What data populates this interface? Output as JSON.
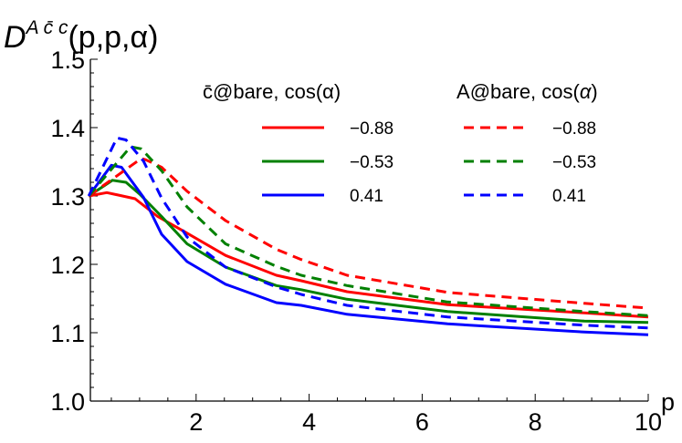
{
  "chart_data": {
    "type": "line",
    "ylabel": "D^{A c̄ c}(p,p,α)",
    "ylabel_parts": {
      "base": "D",
      "sup": "A c̄ c",
      "args": "(p,p,α)"
    },
    "xlabel": "p",
    "xlim": [
      0,
      10
    ],
    "ylim": [
      1.0,
      1.5
    ],
    "xticks": [
      2,
      4,
      6,
      8,
      10
    ],
    "yticks": [
      1.0,
      1.1,
      1.2,
      1.3,
      1.4,
      1.5
    ],
    "ytick_labels": [
      "1.0",
      "1.1",
      "1.2",
      "1.3",
      "1.4",
      "1.5"
    ],
    "grid": false,
    "legend_placement": "top-right",
    "legend_groups": [
      {
        "title": "c̄@bare, cos(α)",
        "title_parts": {
          "sym": "c",
          "rest": "@bare, cos(",
          "alpha": "α",
          "close": ")"
        },
        "style": "solid"
      },
      {
        "title": "A@bare, cos(α)",
        "title_parts": {
          "sym": "A",
          "rest": "@bare, cos(",
          "alpha": "α",
          "close": ")"
        },
        "style": "dashed"
      }
    ],
    "series": [
      {
        "name": "−0.88",
        "group": 0,
        "color": "#ff0000",
        "style": "solid",
        "x": [
          0.1,
          0.42,
          0.92,
          1.32,
          1.81,
          2.52,
          3.42,
          3.86,
          4.67,
          6.45,
          8.87,
          10
        ],
        "y": [
          1.3,
          1.305,
          1.296,
          1.27,
          1.247,
          1.213,
          1.184,
          1.176,
          1.16,
          1.141,
          1.129,
          1.123
        ]
      },
      {
        "name": "−0.53",
        "group": 0,
        "color": "#008000",
        "style": "solid",
        "x": [
          0.1,
          0.52,
          0.76,
          1.0,
          1.39,
          1.84,
          2.52,
          3.42,
          3.86,
          4.67,
          6.45,
          8.87,
          10
        ],
        "y": [
          1.3,
          1.323,
          1.32,
          1.303,
          1.27,
          1.23,
          1.196,
          1.169,
          1.163,
          1.149,
          1.131,
          1.117,
          1.115
        ]
      },
      {
        "name": "0.41",
        "group": 0,
        "color": "#0000ff",
        "style": "solid",
        "x": [
          0.1,
          0.5,
          0.68,
          1.07,
          1.39,
          1.84,
          2.52,
          3.42,
          3.86,
          4.67,
          6.45,
          8.87,
          10
        ],
        "y": [
          1.3,
          1.345,
          1.342,
          1.298,
          1.244,
          1.204,
          1.171,
          1.144,
          1.14,
          1.127,
          1.113,
          1.101,
          1.097
        ]
      },
      {
        "name": "−0.88",
        "group": 1,
        "color": "#ff0000",
        "style": "dashed",
        "x": [
          0.1,
          1.03,
          1.11,
          1.39,
          1.84,
          2.52,
          3.42,
          3.86,
          4.67,
          6.45,
          8.87,
          10
        ],
        "y": [
          1.3,
          1.355,
          1.353,
          1.342,
          1.307,
          1.264,
          1.222,
          1.207,
          1.184,
          1.159,
          1.143,
          1.136
        ]
      },
      {
        "name": "−0.53",
        "group": 1,
        "color": "#008000",
        "style": "dashed",
        "x": [
          0.1,
          0.84,
          1.03,
          1.39,
          1.84,
          2.52,
          3.42,
          3.86,
          4.67,
          6.45,
          8.87,
          10
        ],
        "y": [
          1.3,
          1.372,
          1.369,
          1.337,
          1.284,
          1.23,
          1.197,
          1.184,
          1.169,
          1.145,
          1.131,
          1.125
        ]
      },
      {
        "name": "0.41",
        "group": 1,
        "color": "#0000ff",
        "style": "dashed",
        "x": [
          0.1,
          0.6,
          0.76,
          1.07,
          1.39,
          1.84,
          2.52,
          3.42,
          3.86,
          4.67,
          6.45,
          8.87,
          10
        ],
        "y": [
          1.3,
          1.385,
          1.382,
          1.351,
          1.297,
          1.24,
          1.196,
          1.167,
          1.156,
          1.14,
          1.123,
          1.111,
          1.107
        ]
      }
    ]
  }
}
